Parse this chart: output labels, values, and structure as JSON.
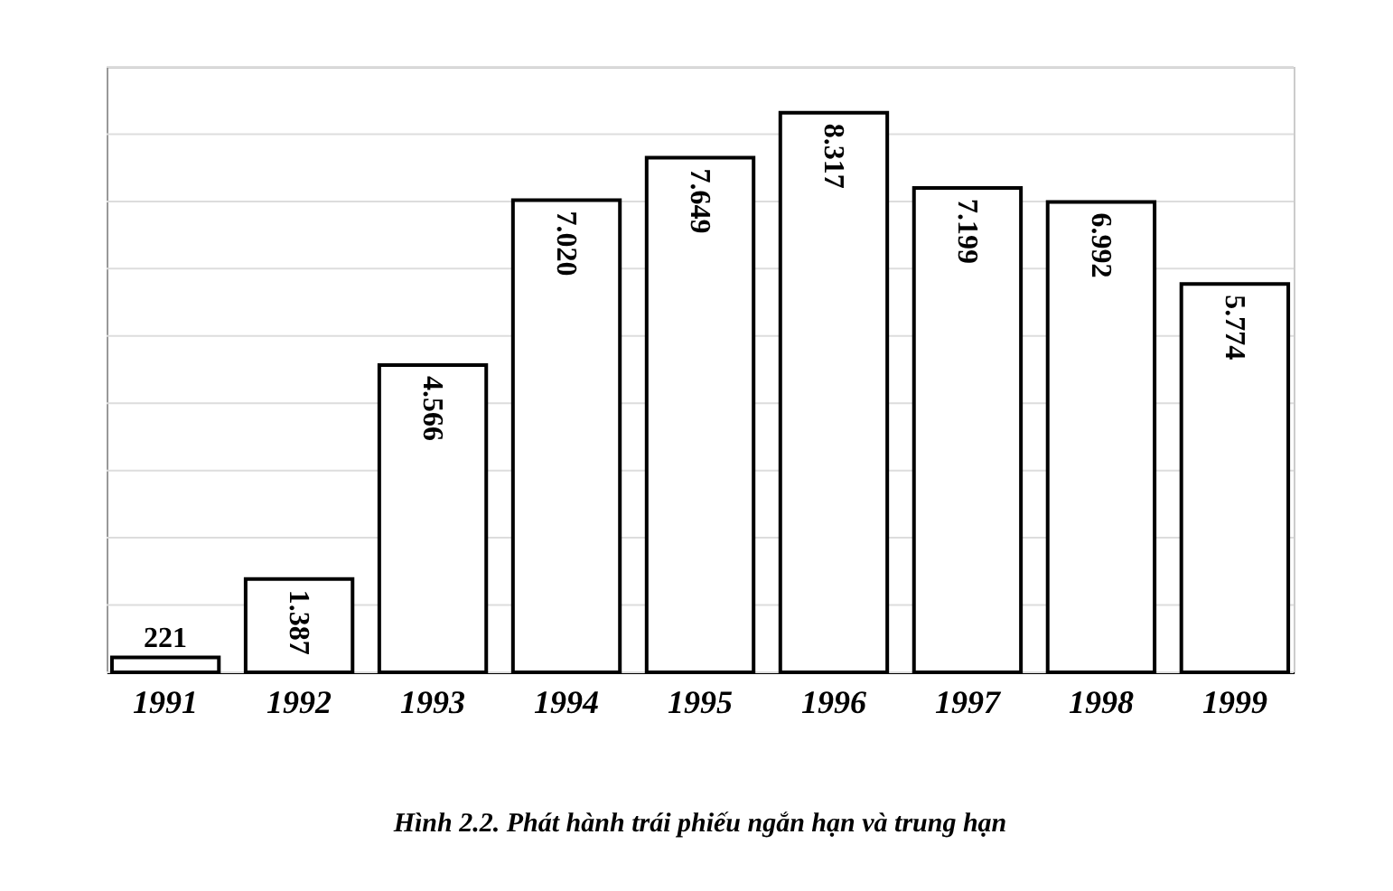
{
  "chart_data": {
    "type": "bar",
    "title": "Hình 2.2. Phát hành trái phiếu ngắn hạn và trung hạn",
    "categories": [
      "1991",
      "1992",
      "1993",
      "1994",
      "1995",
      "1996",
      "1997",
      "1998",
      "1999"
    ],
    "values": [
      221,
      1387,
      4566,
      7020,
      7649,
      8317,
      7199,
      6992,
      5774
    ],
    "value_labels": [
      "221",
      "1.387",
      "4.566",
      "7.020",
      "7.649",
      "8.317",
      "7.199",
      "6.992",
      "5.774"
    ],
    "color": "#ffffff",
    "ylim": [
      0,
      9000
    ],
    "yticks": [
      {
        "value": 0,
        "label": null
      },
      {
        "value": 1000,
        "label": null
      },
      {
        "value": 2000,
        "label": null
      },
      {
        "value": 3000,
        "label": null
      },
      {
        "value": 4000,
        "label": null
      },
      {
        "value": 5000,
        "label": null
      },
      {
        "value": 6000,
        "label": null
      },
      {
        "value": 7000,
        "label": null
      },
      {
        "value": 8000,
        "label": null
      },
      {
        "value": 9000,
        "label": null
      }
    ],
    "grid": "y",
    "tick_labels": "x"
  }
}
